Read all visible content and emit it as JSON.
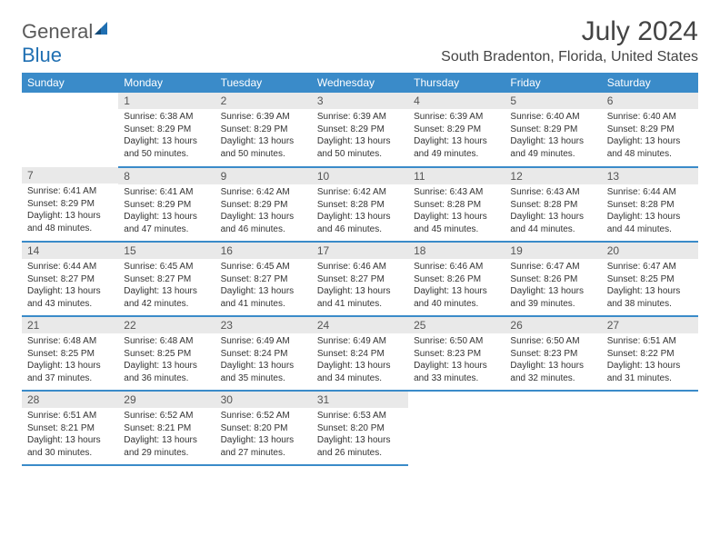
{
  "brand": {
    "name_part1": "General",
    "name_part2": "Blue"
  },
  "title": "July 2024",
  "location": "South Bradenton, Florida, United States",
  "colors": {
    "header_bg": "#3a8bc9",
    "header_text": "#ffffff",
    "daynum_bg": "#e9e9e9",
    "daynum_text": "#555555",
    "row_divider": "#3a8bc9",
    "body_text": "#333333",
    "title_text": "#444444",
    "logo_gray": "#5a5a5a",
    "logo_blue": "#1f6fb2"
  },
  "typography": {
    "title_fontsize": 30,
    "location_fontsize": 16,
    "weekday_fontsize": 12,
    "daynum_fontsize": 12,
    "cell_fontsize": 10,
    "logo_fontsize": 22
  },
  "weekdays": [
    "Sunday",
    "Monday",
    "Tuesday",
    "Wednesday",
    "Thursday",
    "Friday",
    "Saturday"
  ],
  "weeks": [
    [
      null,
      {
        "n": "1",
        "sunrise": "Sunrise: 6:38 AM",
        "sunset": "Sunset: 8:29 PM",
        "day1": "Daylight: 13 hours",
        "day2": "and 50 minutes."
      },
      {
        "n": "2",
        "sunrise": "Sunrise: 6:39 AM",
        "sunset": "Sunset: 8:29 PM",
        "day1": "Daylight: 13 hours",
        "day2": "and 50 minutes."
      },
      {
        "n": "3",
        "sunrise": "Sunrise: 6:39 AM",
        "sunset": "Sunset: 8:29 PM",
        "day1": "Daylight: 13 hours",
        "day2": "and 50 minutes."
      },
      {
        "n": "4",
        "sunrise": "Sunrise: 6:39 AM",
        "sunset": "Sunset: 8:29 PM",
        "day1": "Daylight: 13 hours",
        "day2": "and 49 minutes."
      },
      {
        "n": "5",
        "sunrise": "Sunrise: 6:40 AM",
        "sunset": "Sunset: 8:29 PM",
        "day1": "Daylight: 13 hours",
        "day2": "and 49 minutes."
      },
      {
        "n": "6",
        "sunrise": "Sunrise: 6:40 AM",
        "sunset": "Sunset: 8:29 PM",
        "day1": "Daylight: 13 hours",
        "day2": "and 48 minutes."
      }
    ],
    [
      {
        "n": "7",
        "sunrise": "Sunrise: 6:41 AM",
        "sunset": "Sunset: 8:29 PM",
        "day1": "Daylight: 13 hours",
        "day2": "and 48 minutes."
      },
      {
        "n": "8",
        "sunrise": "Sunrise: 6:41 AM",
        "sunset": "Sunset: 8:29 PM",
        "day1": "Daylight: 13 hours",
        "day2": "and 47 minutes."
      },
      {
        "n": "9",
        "sunrise": "Sunrise: 6:42 AM",
        "sunset": "Sunset: 8:29 PM",
        "day1": "Daylight: 13 hours",
        "day2": "and 46 minutes."
      },
      {
        "n": "10",
        "sunrise": "Sunrise: 6:42 AM",
        "sunset": "Sunset: 8:28 PM",
        "day1": "Daylight: 13 hours",
        "day2": "and 46 minutes."
      },
      {
        "n": "11",
        "sunrise": "Sunrise: 6:43 AM",
        "sunset": "Sunset: 8:28 PM",
        "day1": "Daylight: 13 hours",
        "day2": "and 45 minutes."
      },
      {
        "n": "12",
        "sunrise": "Sunrise: 6:43 AM",
        "sunset": "Sunset: 8:28 PM",
        "day1": "Daylight: 13 hours",
        "day2": "and 44 minutes."
      },
      {
        "n": "13",
        "sunrise": "Sunrise: 6:44 AM",
        "sunset": "Sunset: 8:28 PM",
        "day1": "Daylight: 13 hours",
        "day2": "and 44 minutes."
      }
    ],
    [
      {
        "n": "14",
        "sunrise": "Sunrise: 6:44 AM",
        "sunset": "Sunset: 8:27 PM",
        "day1": "Daylight: 13 hours",
        "day2": "and 43 minutes."
      },
      {
        "n": "15",
        "sunrise": "Sunrise: 6:45 AM",
        "sunset": "Sunset: 8:27 PM",
        "day1": "Daylight: 13 hours",
        "day2": "and 42 minutes."
      },
      {
        "n": "16",
        "sunrise": "Sunrise: 6:45 AM",
        "sunset": "Sunset: 8:27 PM",
        "day1": "Daylight: 13 hours",
        "day2": "and 41 minutes."
      },
      {
        "n": "17",
        "sunrise": "Sunrise: 6:46 AM",
        "sunset": "Sunset: 8:27 PM",
        "day1": "Daylight: 13 hours",
        "day2": "and 41 minutes."
      },
      {
        "n": "18",
        "sunrise": "Sunrise: 6:46 AM",
        "sunset": "Sunset: 8:26 PM",
        "day1": "Daylight: 13 hours",
        "day2": "and 40 minutes."
      },
      {
        "n": "19",
        "sunrise": "Sunrise: 6:47 AM",
        "sunset": "Sunset: 8:26 PM",
        "day1": "Daylight: 13 hours",
        "day2": "and 39 minutes."
      },
      {
        "n": "20",
        "sunrise": "Sunrise: 6:47 AM",
        "sunset": "Sunset: 8:25 PM",
        "day1": "Daylight: 13 hours",
        "day2": "and 38 minutes."
      }
    ],
    [
      {
        "n": "21",
        "sunrise": "Sunrise: 6:48 AM",
        "sunset": "Sunset: 8:25 PM",
        "day1": "Daylight: 13 hours",
        "day2": "and 37 minutes."
      },
      {
        "n": "22",
        "sunrise": "Sunrise: 6:48 AM",
        "sunset": "Sunset: 8:25 PM",
        "day1": "Daylight: 13 hours",
        "day2": "and 36 minutes."
      },
      {
        "n": "23",
        "sunrise": "Sunrise: 6:49 AM",
        "sunset": "Sunset: 8:24 PM",
        "day1": "Daylight: 13 hours",
        "day2": "and 35 minutes."
      },
      {
        "n": "24",
        "sunrise": "Sunrise: 6:49 AM",
        "sunset": "Sunset: 8:24 PM",
        "day1": "Daylight: 13 hours",
        "day2": "and 34 minutes."
      },
      {
        "n": "25",
        "sunrise": "Sunrise: 6:50 AM",
        "sunset": "Sunset: 8:23 PM",
        "day1": "Daylight: 13 hours",
        "day2": "and 33 minutes."
      },
      {
        "n": "26",
        "sunrise": "Sunrise: 6:50 AM",
        "sunset": "Sunset: 8:23 PM",
        "day1": "Daylight: 13 hours",
        "day2": "and 32 minutes."
      },
      {
        "n": "27",
        "sunrise": "Sunrise: 6:51 AM",
        "sunset": "Sunset: 8:22 PM",
        "day1": "Daylight: 13 hours",
        "day2": "and 31 minutes."
      }
    ],
    [
      {
        "n": "28",
        "sunrise": "Sunrise: 6:51 AM",
        "sunset": "Sunset: 8:21 PM",
        "day1": "Daylight: 13 hours",
        "day2": "and 30 minutes."
      },
      {
        "n": "29",
        "sunrise": "Sunrise: 6:52 AM",
        "sunset": "Sunset: 8:21 PM",
        "day1": "Daylight: 13 hours",
        "day2": "and 29 minutes."
      },
      {
        "n": "30",
        "sunrise": "Sunrise: 6:52 AM",
        "sunset": "Sunset: 8:20 PM",
        "day1": "Daylight: 13 hours",
        "day2": "and 27 minutes."
      },
      {
        "n": "31",
        "sunrise": "Sunrise: 6:53 AM",
        "sunset": "Sunset: 8:20 PM",
        "day1": "Daylight: 13 hours",
        "day2": "and 26 minutes."
      },
      null,
      null,
      null
    ]
  ]
}
